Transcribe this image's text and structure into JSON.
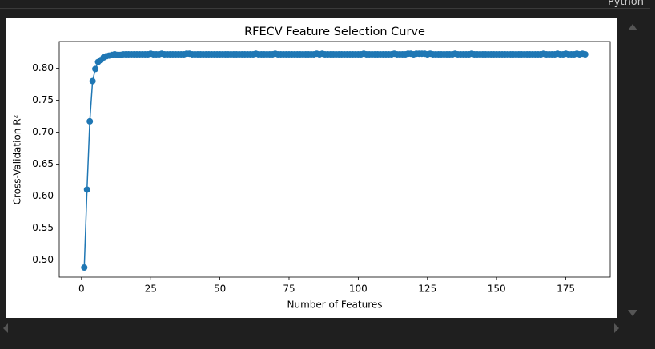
{
  "header": {
    "kernel": "Python"
  },
  "chart_data": {
    "type": "line",
    "title": "RFECV Feature Selection Curve",
    "xlabel": "Number of Features",
    "ylabel": "Cross-Validation R²",
    "color": "#1f77b4",
    "grid": false,
    "x": [
      1,
      2,
      3,
      4,
      5,
      6,
      7,
      8,
      9,
      10,
      11,
      12,
      13,
      14,
      15,
      16,
      17,
      18,
      19,
      20,
      21,
      22,
      23,
      24,
      25,
      26,
      27,
      28,
      29,
      30,
      31,
      32,
      33,
      34,
      35,
      36,
      37,
      38,
      39,
      40,
      41,
      42,
      43,
      44,
      45,
      46,
      47,
      48,
      49,
      50,
      51,
      52,
      53,
      54,
      55,
      56,
      57,
      58,
      59,
      60,
      61,
      62,
      63,
      64,
      65,
      66,
      67,
      68,
      69,
      70,
      71,
      72,
      73,
      74,
      75,
      76,
      77,
      78,
      79,
      80,
      81,
      82,
      83,
      84,
      85,
      86,
      87,
      88,
      89,
      90,
      91,
      92,
      93,
      94,
      95,
      96,
      97,
      98,
      99,
      100,
      101,
      102,
      103,
      104,
      105,
      106,
      107,
      108,
      109,
      110,
      111,
      112,
      113,
      114,
      115,
      116,
      117,
      118,
      119,
      120,
      121,
      122,
      123,
      124,
      125,
      126,
      127,
      128,
      129,
      130,
      131,
      132,
      133,
      134,
      135,
      136,
      137,
      138,
      139,
      140,
      141,
      142,
      143,
      144,
      145,
      146,
      147,
      148,
      149,
      150,
      151,
      152,
      153,
      154,
      155,
      156,
      157,
      158,
      159,
      160,
      161,
      162,
      163,
      164,
      165,
      166,
      167,
      168,
      169,
      170,
      171,
      172,
      173,
      174,
      175,
      176,
      177,
      178,
      179,
      180,
      181,
      182
    ],
    "values": [
      0.488,
      0.61,
      0.717,
      0.78,
      0.799,
      0.81,
      0.813,
      0.817,
      0.819,
      0.82,
      0.821,
      0.822,
      0.821,
      0.821,
      0.822,
      0.822,
      0.822,
      0.822,
      0.822,
      0.822,
      0.822,
      0.822,
      0.822,
      0.822,
      0.823,
      0.822,
      0.822,
      0.822,
      0.823,
      0.822,
      0.822,
      0.822,
      0.822,
      0.822,
      0.822,
      0.822,
      0.822,
      0.823,
      0.823,
      0.822,
      0.822,
      0.822,
      0.822,
      0.822,
      0.822,
      0.822,
      0.822,
      0.822,
      0.822,
      0.822,
      0.822,
      0.822,
      0.822,
      0.822,
      0.822,
      0.822,
      0.822,
      0.822,
      0.822,
      0.822,
      0.822,
      0.822,
      0.823,
      0.822,
      0.822,
      0.822,
      0.822,
      0.822,
      0.822,
      0.823,
      0.822,
      0.822,
      0.822,
      0.822,
      0.822,
      0.822,
      0.822,
      0.822,
      0.822,
      0.822,
      0.822,
      0.822,
      0.822,
      0.822,
      0.823,
      0.822,
      0.823,
      0.822,
      0.822,
      0.822,
      0.822,
      0.822,
      0.822,
      0.822,
      0.822,
      0.822,
      0.822,
      0.822,
      0.822,
      0.822,
      0.822,
      0.823,
      0.822,
      0.822,
      0.822,
      0.822,
      0.822,
      0.822,
      0.822,
      0.822,
      0.822,
      0.822,
      0.823,
      0.822,
      0.822,
      0.822,
      0.822,
      0.823,
      0.823,
      0.822,
      0.823,
      0.823,
      0.823,
      0.823,
      0.822,
      0.823,
      0.822,
      0.822,
      0.822,
      0.822,
      0.822,
      0.822,
      0.822,
      0.822,
      0.823,
      0.822,
      0.822,
      0.822,
      0.822,
      0.822,
      0.823,
      0.822,
      0.822,
      0.822,
      0.822,
      0.822,
      0.822,
      0.822,
      0.822,
      0.822,
      0.822,
      0.822,
      0.822,
      0.822,
      0.822,
      0.822,
      0.822,
      0.822,
      0.822,
      0.822,
      0.822,
      0.822,
      0.822,
      0.822,
      0.822,
      0.822,
      0.823,
      0.822,
      0.822,
      0.822,
      0.822,
      0.823,
      0.822,
      0.822,
      0.823,
      0.822,
      0.822,
      0.822,
      0.823,
      0.822,
      0.823,
      0.822
    ],
    "xlim": [
      -8.05,
      191.05
    ],
    "xticks": [
      0,
      25,
      50,
      75,
      100,
      125,
      150,
      175
    ],
    "ylim": [
      0.473,
      0.842
    ],
    "yticks": [
      {
        "value": 0.5,
        "label": "0.50"
      },
      0.55,
      {
        "value": 0.6,
        "label": "0.60"
      },
      0.65,
      {
        "value": 0.7,
        "label": "0.70"
      },
      0.75,
      {
        "value": 0.8,
        "label": "0.80"
      }
    ]
  }
}
